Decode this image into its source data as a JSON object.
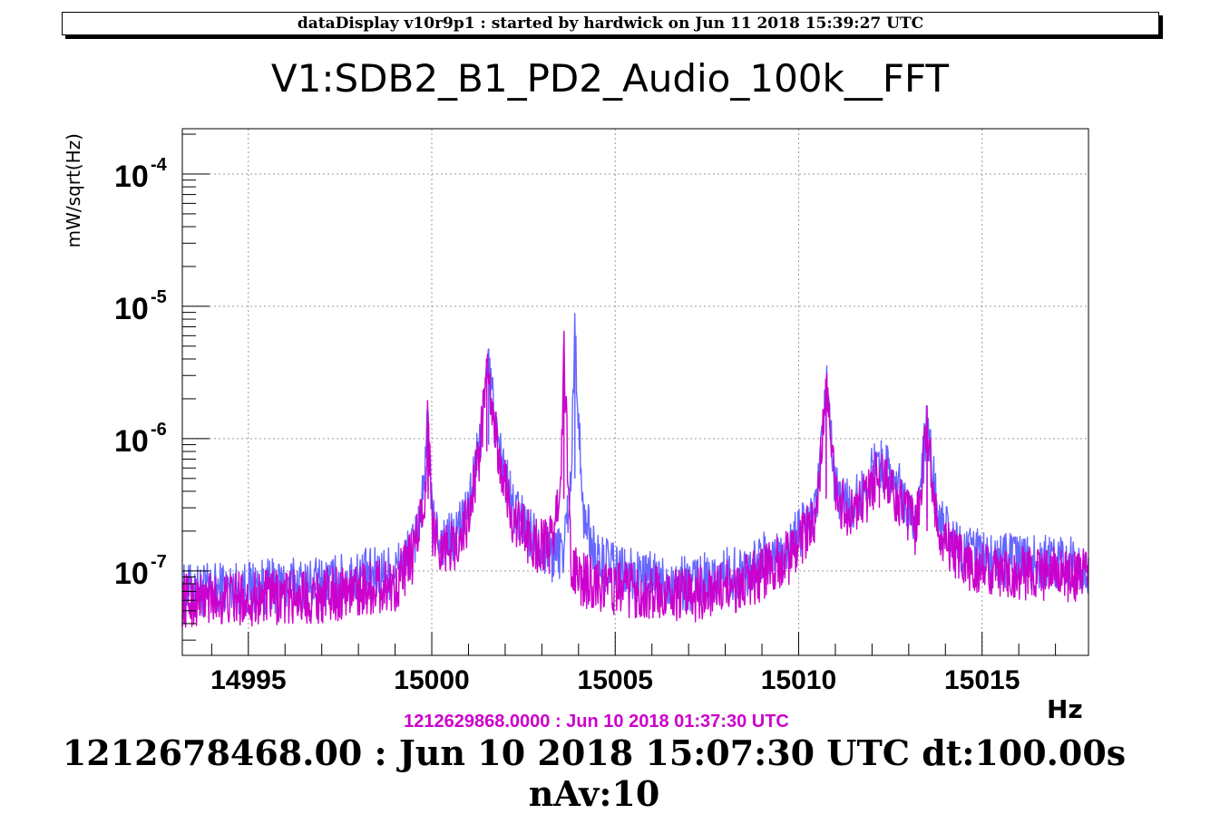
{
  "header": {
    "text": "dataDisplay v10r9p1 : started by hardwick on Jun 11 2018 15:39:27 UTC"
  },
  "footer": {
    "reference_time": "1212629868.0000 : Jun 10 2018 01:37:30 UTC",
    "current_time": "1212678468.00 : Jun 10 2018 15:07:30 UTC dt:100.00s nAv:10"
  },
  "colors": {
    "reference_series": "#cc00cc",
    "current_series": "#6666ff",
    "grid": "#9a9a9a"
  },
  "chart_data": {
    "type": "line",
    "title": "V1:SDB2_B1_PD2_Audio_100k__FFT",
    "xlabel": "Hz",
    "ylabel": "mW/sqrt(Hz)",
    "xlim": [
      14993.2,
      15017.9
    ],
    "ylim": [
      2.3e-08,
      0.00022
    ],
    "y_scale": "log",
    "grid": true,
    "x_ticks": [
      14995,
      15000,
      15005,
      15010,
      15015
    ],
    "y_ticks": [
      {
        "base": "10",
        "exp": "-4",
        "value": 0.0001
      },
      {
        "base": "10",
        "exp": "-5",
        "value": 1e-05
      },
      {
        "base": "10",
        "exp": "-6",
        "value": 1e-06
      },
      {
        "base": "10",
        "exp": "-7",
        "value": 1e-07
      }
    ],
    "series": [
      {
        "color": "#6666ff",
        "x": [
          14993.2,
          14995,
          14997,
          14999,
          14999.5,
          14999.8,
          14999.9,
          15000.0,
          15000.2,
          15000.6,
          15001.0,
          15001.3,
          15001.55,
          15001.8,
          15002.2,
          15002.8,
          15003.3,
          15003.6,
          15003.8,
          15003.9,
          15004.1,
          15004.5,
          15005.5,
          15007,
          15008.5,
          15009.8,
          15010.5,
          15010.75,
          15011.0,
          15011.5,
          15012.2,
          15012.8,
          15013.2,
          15013.5,
          15013.8,
          15014.3,
          15015.5,
          15017.9
        ],
        "y": [
          7e-08,
          7.5e-08,
          8e-08,
          1e-07,
          1.5e-07,
          4e-07,
          1.6e-06,
          2.5e-07,
          1.8e-07,
          1.7e-07,
          3e-07,
          9e-07,
          3.6e-06,
          9e-07,
          3e-07,
          1.8e-07,
          1.3e-07,
          1.5e-07,
          5e-07,
          7.2e-06,
          3e-07,
          1.2e-07,
          9e-08,
          8e-08,
          1e-07,
          1.6e-07,
          3e-07,
          2.5e-06,
          4e-07,
          3e-07,
          7e-07,
          4e-07,
          2.5e-07,
          1.2e-06,
          2.5e-07,
          1.5e-07,
          1.2e-07,
          1.1e-07
        ]
      },
      {
        "color": "#cc00cc",
        "x": [
          14993.2,
          14995,
          14997,
          14999,
          14999.5,
          14999.8,
          14999.9,
          15000.0,
          15000.2,
          15000.6,
          15001.0,
          15001.3,
          15001.5,
          15001.8,
          15002.2,
          15002.8,
          15003.2,
          15003.5,
          15003.6,
          15003.8,
          15004.1,
          15004.5,
          15005.5,
          15007,
          15008.5,
          15009.8,
          15010.5,
          15010.75,
          15011.0,
          15011.5,
          15012.2,
          15012.8,
          15013.2,
          15013.5,
          15013.8,
          15014.3,
          15015.5,
          15017.9
        ],
        "y": [
          6e-08,
          6.2e-08,
          6.5e-08,
          8e-08,
          1.3e-07,
          3.5e-07,
          1.5e-06,
          2.2e-07,
          1.6e-07,
          1.5e-07,
          2.5e-07,
          8e-07,
          3.1e-06,
          8e-07,
          2.5e-07,
          1.6e-07,
          1.5e-07,
          3.5e-07,
          4.7e-06,
          1e-07,
          8.5e-08,
          8e-08,
          7e-08,
          6.5e-08,
          8e-08,
          1.3e-07,
          2.5e-07,
          2.8e-06,
          3.5e-07,
          2.5e-07,
          5.5e-07,
          3e-07,
          2e-07,
          1.1e-06,
          2e-07,
          1.2e-07,
          1e-07,
          9e-08
        ]
      }
    ]
  }
}
